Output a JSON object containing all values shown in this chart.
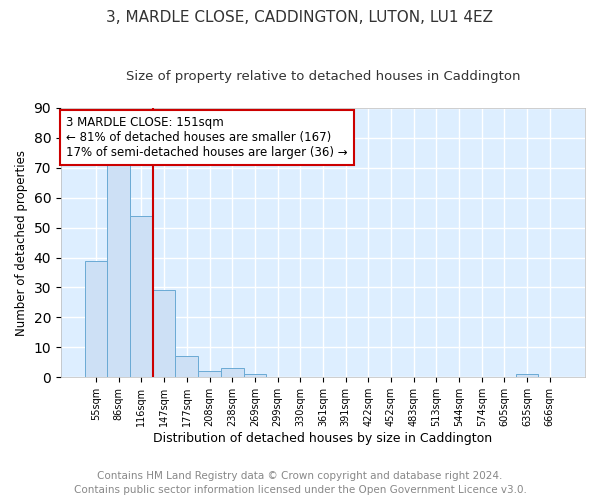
{
  "title": "3, MARDLE CLOSE, CADDINGTON, LUTON, LU1 4EZ",
  "subtitle": "Size of property relative to detached houses in Caddington",
  "xlabel": "Distribution of detached houses by size in Caddington",
  "ylabel": "Number of detached properties",
  "bar_labels": [
    "55sqm",
    "86sqm",
    "116sqm",
    "147sqm",
    "177sqm",
    "208sqm",
    "238sqm",
    "269sqm",
    "299sqm",
    "330sqm",
    "361sqm",
    "391sqm",
    "422sqm",
    "452sqm",
    "483sqm",
    "513sqm",
    "544sqm",
    "574sqm",
    "605sqm",
    "635sqm",
    "666sqm"
  ],
  "bar_values": [
    39,
    71,
    54,
    29,
    7,
    2,
    3,
    1,
    0,
    0,
    0,
    0,
    0,
    0,
    0,
    0,
    0,
    0,
    0,
    1,
    0
  ],
  "bar_color": "#cde0f5",
  "bar_edge_color": "#6aaad4",
  "background_color": "#ddeeff",
  "grid_color": "#ffffff",
  "ref_line_color": "#cc0000",
  "annotation_text": "3 MARDLE CLOSE: 151sqm\n← 81% of detached houses are smaller (167)\n17% of semi-detached houses are larger (36) →",
  "annotation_box_color": "#ffffff",
  "annotation_box_edge": "#cc0000",
  "ylim": [
    0,
    90
  ],
  "yticks": [
    0,
    10,
    20,
    30,
    40,
    50,
    60,
    70,
    80,
    90
  ],
  "footer_text": "Contains HM Land Registry data © Crown copyright and database right 2024.\nContains public sector information licensed under the Open Government Licence v3.0.",
  "title_fontsize": 11,
  "subtitle_fontsize": 9.5,
  "annotation_fontsize": 8.5,
  "footer_fontsize": 7.5,
  "ylabel_fontsize": 8.5,
  "xlabel_fontsize": 9
}
